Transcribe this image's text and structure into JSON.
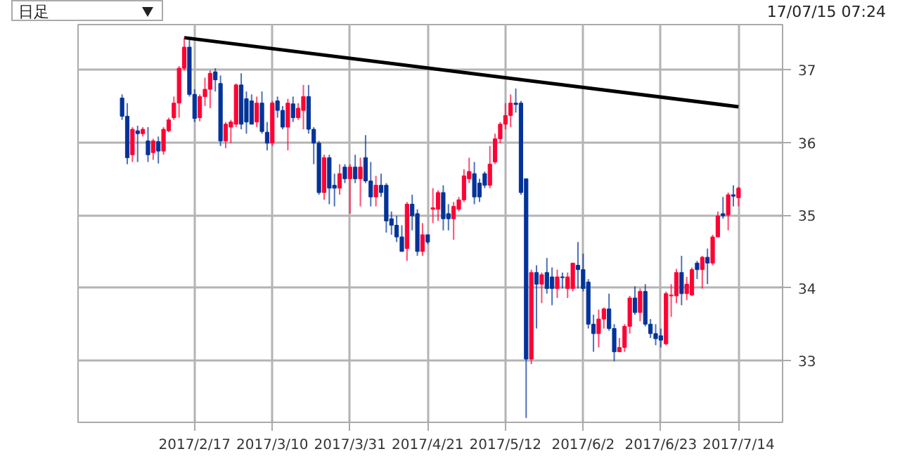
{
  "chart_data": {
    "type": "candlestick",
    "categories": [
      null,
      null,
      null,
      null,
      null,
      null,
      null,
      null,
      null,
      null,
      null,
      null,
      null,
      null,
      "2017/2/17",
      null,
      null,
      null,
      null,
      null,
      null,
      null,
      null,
      null,
      null,
      null,
      null,
      null,
      null,
      "2017/3/10",
      null,
      null,
      null,
      null,
      null,
      null,
      null,
      null,
      null,
      null,
      null,
      null,
      null,
      null,
      "2017/3/31",
      null,
      null,
      null,
      null,
      null,
      null,
      null,
      null,
      null,
      null,
      null,
      null,
      null,
      null,
      "2017/4/21",
      null,
      null,
      null,
      null,
      null,
      null,
      null,
      null,
      null,
      null,
      null,
      null,
      null,
      null,
      "2017/5/12",
      null,
      null,
      null,
      null,
      null,
      null,
      null,
      null,
      null,
      null,
      null,
      null,
      null,
      null,
      "2017/6/2",
      null,
      null,
      null,
      null,
      null,
      null,
      null,
      null,
      null,
      null,
      null,
      null,
      null,
      null,
      "2017/6/23",
      null,
      null,
      null,
      null,
      null,
      null,
      null,
      null,
      null,
      null,
      null,
      null,
      null,
      null,
      "2017/7/14"
    ],
    "ohlc": [
      [
        36.61,
        36.66,
        36.31,
        36.36
      ],
      [
        36.36,
        36.54,
        35.7,
        35.79
      ],
      [
        35.83,
        36.21,
        35.73,
        36.18
      ],
      [
        36.16,
        36.23,
        35.73,
        36.12
      ],
      [
        36.12,
        36.21,
        36.08,
        36.18
      ],
      [
        36.02,
        36.21,
        35.73,
        35.83
      ],
      [
        35.86,
        36.05,
        35.76,
        36.02
      ],
      [
        36.01,
        36.08,
        35.71,
        35.88
      ],
      [
        35.88,
        36.21,
        35.83,
        36.18
      ],
      [
        36.16,
        36.34,
        36.14,
        36.31
      ],
      [
        36.34,
        36.63,
        36.31,
        36.54
      ],
      [
        36.54,
        37.05,
        36.34,
        37.02
      ],
      [
        37.02,
        37.44,
        36.99,
        37.31
      ],
      [
        37.31,
        37.41,
        36.63,
        36.66
      ],
      [
        36.66,
        36.73,
        36.28,
        36.33
      ],
      [
        36.34,
        36.66,
        36.29,
        36.63
      ],
      [
        36.63,
        36.89,
        36.5,
        36.73
      ],
      [
        36.73,
        36.99,
        36.47,
        36.95
      ],
      [
        36.97,
        37.02,
        36.7,
        36.86
      ],
      [
        36.81,
        36.92,
        35.95,
        36.02
      ],
      [
        36.02,
        36.28,
        35.92,
        36.25
      ],
      [
        36.21,
        36.31,
        35.99,
        36.28
      ],
      [
        36.25,
        36.81,
        36.21,
        36.79
      ],
      [
        36.79,
        36.95,
        36.18,
        36.25
      ],
      [
        36.6,
        36.7,
        36.12,
        36.28
      ],
      [
        36.57,
        36.66,
        36.25,
        36.25
      ],
      [
        36.28,
        36.63,
        36.21,
        36.54
      ],
      [
        36.54,
        36.7,
        36.12,
        36.15
      ],
      [
        36.14,
        36.28,
        35.89,
        35.99
      ],
      [
        35.99,
        36.57,
        35.95,
        36.54
      ],
      [
        36.57,
        36.63,
        36.34,
        36.44
      ],
      [
        36.44,
        36.5,
        36.18,
        36.21
      ],
      [
        36.21,
        36.6,
        35.89,
        36.54
      ],
      [
        36.53,
        36.63,
        36.28,
        36.34
      ],
      [
        36.34,
        36.54,
        36.31,
        36.47
      ],
      [
        36.44,
        36.79,
        36.18,
        36.63
      ],
      [
        36.63,
        36.79,
        36.12,
        36.18
      ],
      [
        36.18,
        36.21,
        35.7,
        35.99
      ],
      [
        35.99,
        36.02,
        35.28,
        35.31
      ],
      [
        35.31,
        35.83,
        35.21,
        35.79
      ],
      [
        35.79,
        35.83,
        35.15,
        35.37
      ],
      [
        35.41,
        35.57,
        35.12,
        35.37
      ],
      [
        35.37,
        35.7,
        35.28,
        35.57
      ],
      [
        35.66,
        35.7,
        35.44,
        35.5
      ],
      [
        35.5,
        35.7,
        35.02,
        35.66
      ],
      [
        35.66,
        35.83,
        35.44,
        35.5
      ],
      [
        35.5,
        35.79,
        35.12,
        35.66
      ],
      [
        35.79,
        36.1,
        35.44,
        35.47
      ],
      [
        35.47,
        35.73,
        35.12,
        35.25
      ],
      [
        35.25,
        35.54,
        35.12,
        35.41
      ],
      [
        35.41,
        35.57,
        35.25,
        35.31
      ],
      [
        35.41,
        35.44,
        34.76,
        34.92
      ],
      [
        34.95,
        35.05,
        34.73,
        34.86
      ],
      [
        34.86,
        34.99,
        34.63,
        34.7
      ],
      [
        34.7,
        34.86,
        34.5,
        34.5
      ],
      [
        34.54,
        35.18,
        34.37,
        35.15
      ],
      [
        35.15,
        35.28,
        34.79,
        34.99
      ],
      [
        35.02,
        35.08,
        34.44,
        34.5
      ],
      [
        34.5,
        34.89,
        34.44,
        34.73
      ],
      [
        34.73,
        34.73,
        34.6,
        34.63
      ],
      [
        35.08,
        35.37,
        34.89,
        35.1
      ],
      [
        35.08,
        35.34,
        34.92,
        35.31
      ],
      [
        35.31,
        35.41,
        34.79,
        34.95
      ],
      [
        35.02,
        35.15,
        34.79,
        34.95
      ],
      [
        34.95,
        35.18,
        34.66,
        35.12
      ],
      [
        35.08,
        35.25,
        35.05,
        35.21
      ],
      [
        35.21,
        35.63,
        35.18,
        35.54
      ],
      [
        35.5,
        35.79,
        35.44,
        35.6
      ],
      [
        35.57,
        35.73,
        35.15,
        35.25
      ],
      [
        35.44,
        35.5,
        35.18,
        35.25
      ],
      [
        35.57,
        35.6,
        35.37,
        35.41
      ],
      [
        35.41,
        35.95,
        35.37,
        35.7
      ],
      [
        35.73,
        36.12,
        35.7,
        36.05
      ],
      [
        36.05,
        36.28,
        35.99,
        36.25
      ],
      [
        36.25,
        36.54,
        36.18,
        36.37
      ],
      [
        36.37,
        36.66,
        36.21,
        36.54
      ],
      [
        36.54,
        36.74,
        36.41,
        36.52
      ],
      [
        36.54,
        36.57,
        35.28,
        35.31
      ],
      [
        35.5,
        35.5,
        32.21,
        33.02
      ],
      [
        33.02,
        34.25,
        32.95,
        34.21
      ],
      [
        34.21,
        34.31,
        33.44,
        34.05
      ],
      [
        34.05,
        34.21,
        33.79,
        34.18
      ],
      [
        34.21,
        34.41,
        33.92,
        33.99
      ],
      [
        34.15,
        34.28,
        33.76,
        33.99
      ],
      [
        33.99,
        34.25,
        33.86,
        34.15
      ],
      [
        34.15,
        34.21,
        33.99,
        34.14
      ],
      [
        33.99,
        34.21,
        33.86,
        34.15
      ],
      [
        33.99,
        34.34,
        33.95,
        34.34
      ],
      [
        34.31,
        34.63,
        33.99,
        34.25
      ],
      [
        34.25,
        34.47,
        33.95,
        33.99
      ],
      [
        34.08,
        34.12,
        33.44,
        33.5
      ],
      [
        33.5,
        33.63,
        33.12,
        33.37
      ],
      [
        33.37,
        33.7,
        33.18,
        33.57
      ],
      [
        33.57,
        33.73,
        33.44,
        33.71
      ],
      [
        33.71,
        33.92,
        33.41,
        33.44
      ],
      [
        33.44,
        33.5,
        32.99,
        33.12
      ],
      [
        33.12,
        33.31,
        33.12,
        33.18
      ],
      [
        33.18,
        33.5,
        33.12,
        33.47
      ],
      [
        33.47,
        33.89,
        33.37,
        33.86
      ],
      [
        33.86,
        34.02,
        33.63,
        33.66
      ],
      [
        33.66,
        33.99,
        33.54,
        33.95
      ],
      [
        33.95,
        34.05,
        33.47,
        33.5
      ],
      [
        33.5,
        33.57,
        33.31,
        33.37
      ],
      [
        33.37,
        33.5,
        33.21,
        33.3
      ],
      [
        33.34,
        33.44,
        33.18,
        33.28
      ],
      [
        33.23,
        33.95,
        33.21,
        33.92
      ],
      [
        33.89,
        34.05,
        33.6,
        33.9
      ],
      [
        33.89,
        34.26,
        33.79,
        34.21
      ],
      [
        34.21,
        34.44,
        33.76,
        33.92
      ],
      [
        33.92,
        34.15,
        33.83,
        34.05
      ],
      [
        33.9,
        34.28,
        33.89,
        34.25
      ],
      [
        34.34,
        34.37,
        34.12,
        34.25
      ],
      [
        34.25,
        34.44,
        33.99,
        34.42
      ],
      [
        34.42,
        34.54,
        34.05,
        34.34
      ],
      [
        34.34,
        34.73,
        34.31,
        34.7
      ],
      [
        34.7,
        35.05,
        34.7,
        34.99
      ],
      [
        35.02,
        35.25,
        34.95,
        34.99
      ],
      [
        35.0,
        35.31,
        34.79,
        35.28
      ],
      [
        35.28,
        35.41,
        35.12,
        35.26
      ],
      [
        35.24,
        35.39,
        35.12,
        35.37
      ]
    ],
    "colors": [
      "#003399",
      "#003399",
      "#ff0033",
      "#003399",
      "#ff0033",
      "#003399",
      "#ff0033",
      "#003399",
      "#ff0033",
      "#ff0033",
      "#ff0033",
      "#ff0033",
      "#ff0033",
      "#003399",
      "#003399",
      "#ff0033",
      "#ff0033",
      "#ff0033",
      "#003399",
      "#003399",
      "#ff0033",
      "#ff0033",
      "#ff0033",
      "#003399",
      "#003399",
      "#003399",
      "#ff0033",
      "#003399",
      "#003399",
      "#ff0033",
      "#003399",
      "#003399",
      "#ff0033",
      "#003399",
      "#ff0033",
      "#ff0033",
      "#003399",
      "#003399",
      "#003399",
      "#ff0033",
      "#003399",
      "#003399",
      "#ff0033",
      "#003399",
      "#ff0033",
      "#003399",
      "#ff0033",
      "#003399",
      "#003399",
      "#ff0033",
      "#003399",
      "#003399",
      "#003399",
      "#003399",
      "#003399",
      "#ff0033",
      "#003399",
      "#003399",
      "#ff0033",
      "#003399",
      "#ff0033",
      "#ff0033",
      "#003399",
      "#003399",
      "#ff0033",
      "#ff0033",
      "#ff0033",
      "#ff0033",
      "#003399",
      "#003399",
      "#003399",
      "#ff0033",
      "#ff0033",
      "#ff0033",
      "#ff0033",
      "#ff0033",
      "#003399",
      "#003399",
      "#003399",
      "#ff0033",
      "#003399",
      "#ff0033",
      "#003399",
      "#003399",
      "#ff0033",
      "#003399",
      "#ff0033",
      "#ff0033",
      "#003399",
      "#003399",
      "#003399",
      "#003399",
      "#ff0033",
      "#ff0033",
      "#003399",
      "#003399",
      "#ff0033",
      "#ff0033",
      "#ff0033",
      "#003399",
      "#ff0033",
      "#003399",
      "#003399",
      "#003399",
      "#003399",
      "#ff0033",
      "#ff0033",
      "#ff0033",
      "#003399",
      "#ff0033",
      "#ff0033",
      "#003399",
      "#ff0033",
      "#003399",
      "#ff0033",
      "#ff0033",
      "#003399",
      "#ff0033",
      "#003399",
      "#ff0033"
    ],
    "series": [
      {
        "type": "line",
        "color": "#000000",
        "values": [
          null,
          null,
          null,
          null,
          null,
          null,
          null,
          null,
          null,
          null,
          null,
          null,
          37.44,
          null,
          null,
          null,
          null,
          null,
          null,
          null,
          null,
          null,
          null,
          null,
          null,
          null,
          null,
          null,
          null,
          null,
          null,
          null,
          null,
          null,
          null,
          null,
          null,
          null,
          null,
          null,
          null,
          null,
          null,
          null,
          null,
          null,
          null,
          null,
          null,
          null,
          null,
          null,
          null,
          null,
          null,
          null,
          null,
          null,
          null,
          null,
          null,
          null,
          null,
          null,
          null,
          null,
          null,
          null,
          null,
          null,
          null,
          null,
          null,
          null,
          null,
          null,
          null,
          null,
          null,
          null,
          null,
          null,
          null,
          null,
          null,
          null,
          null,
          null,
          null,
          null,
          null,
          null,
          null,
          null,
          null,
          null,
          null,
          null,
          null,
          null,
          null,
          null,
          null,
          null,
          null,
          null,
          null,
          null,
          null,
          null,
          null,
          null,
          null,
          null,
          null,
          null,
          null,
          null,
          null,
          36.49
        ]
      }
    ],
    "ylim": [
      32.15,
      37.62
    ],
    "yticks": [
      33,
      34,
      35,
      36,
      37
    ],
    "grid": true,
    "annotations": [
      "日足",
      "17/07/15 07:24"
    ]
  }
}
